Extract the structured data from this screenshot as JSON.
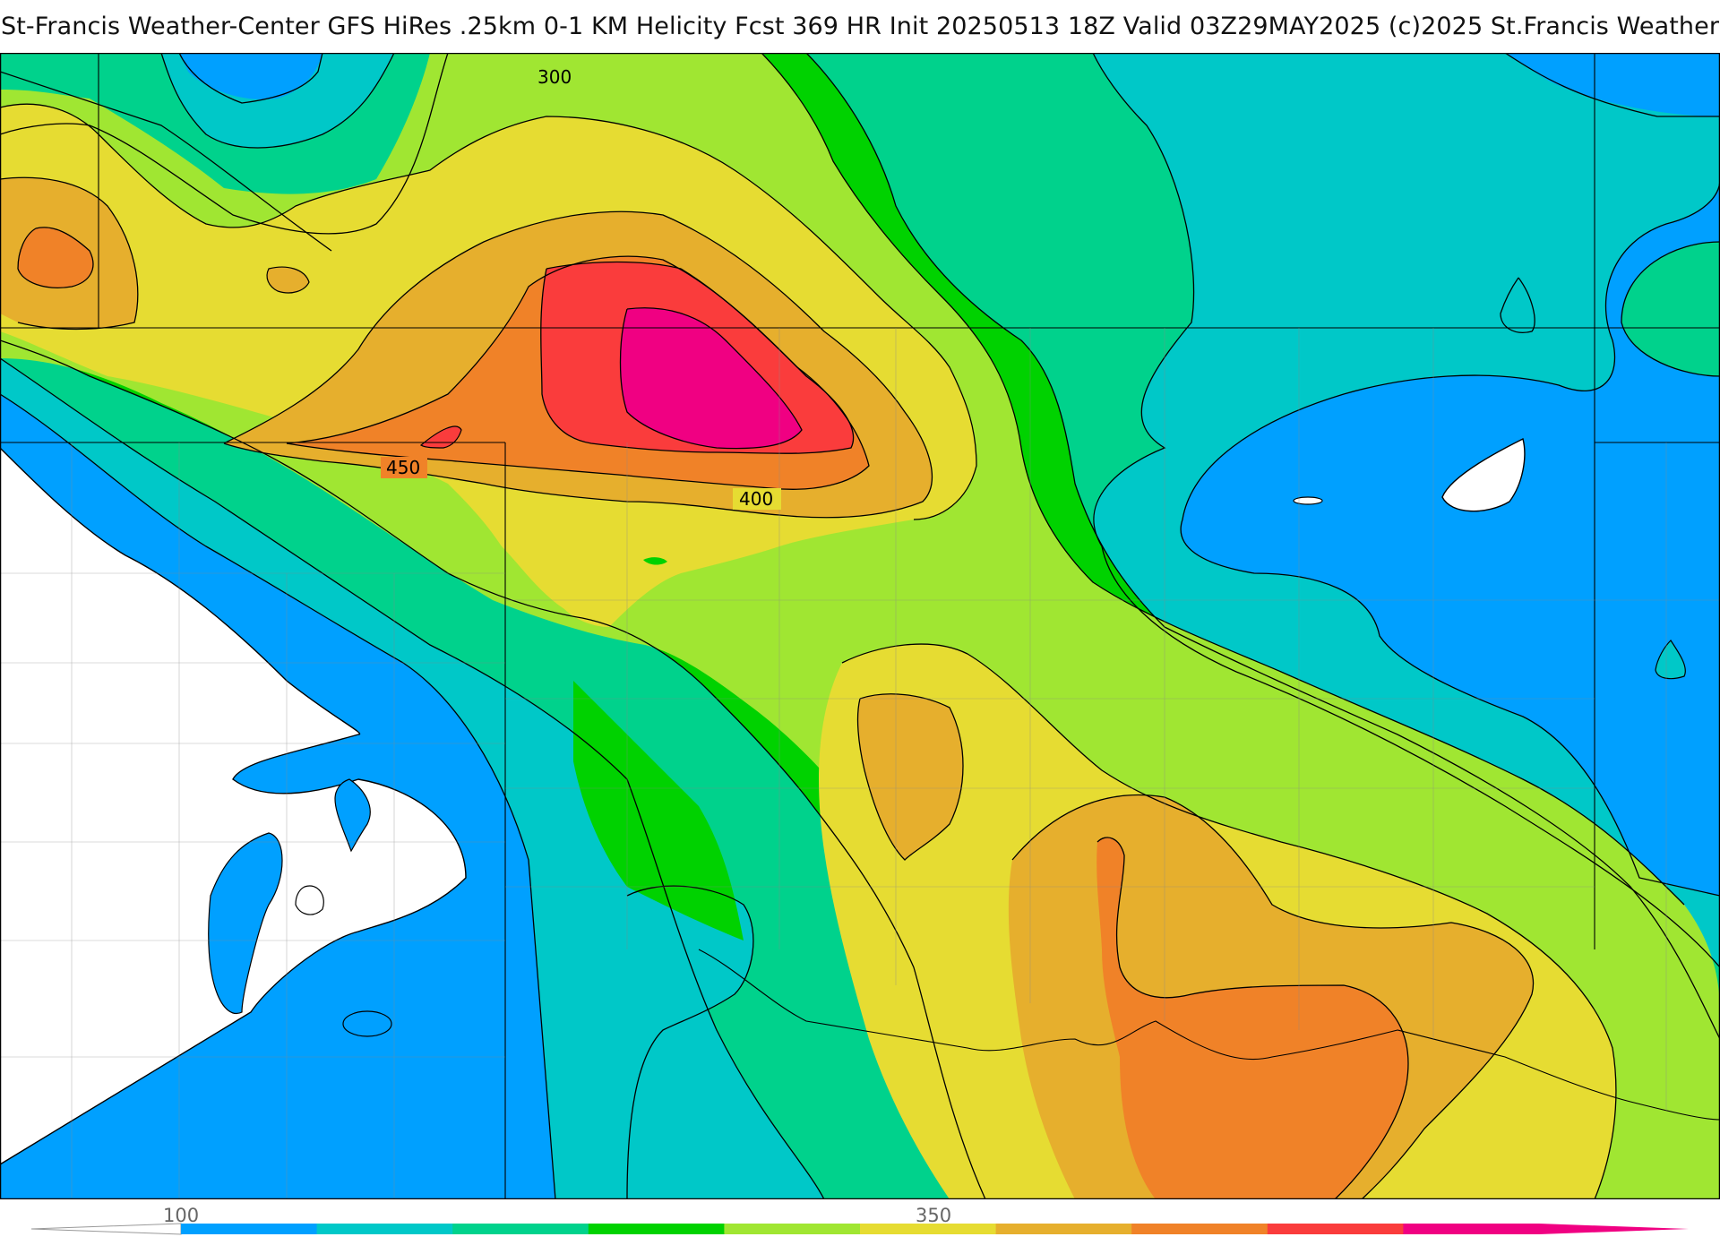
{
  "header": {
    "title": "St-Francis Weather-Center GFS HiRes .25km 0-1 KM Helicity Fcst 369 HR Init 20250513 18Z  Valid 03Z29MAY2025    (c)2025 St.Francis Weather"
  },
  "map": {
    "field": "0-1 KM Helicity",
    "contour_labels": [
      "300",
      "450",
      "400"
    ]
  },
  "colorbar": {
    "tick_labels": [
      "100",
      "350"
    ],
    "colors": [
      "#00a0ff",
      "#00c8c8",
      "#00d28c",
      "#00d200",
      "#a0e632",
      "#e6dc32",
      "#e6af2d",
      "#f08228",
      "#fa3c3c",
      "#f00082"
    ]
  }
}
